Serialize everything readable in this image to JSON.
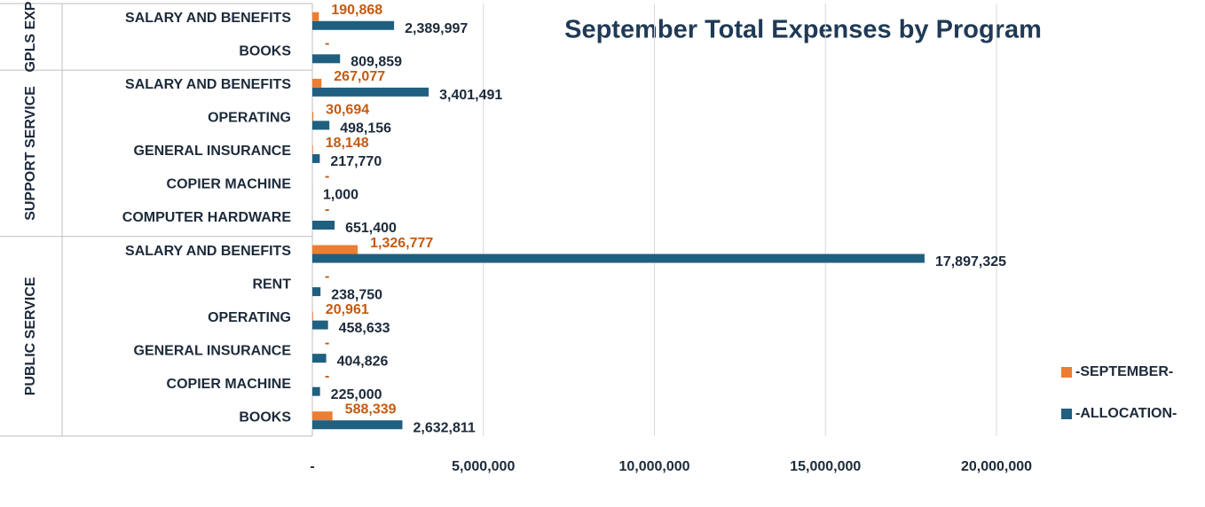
{
  "chart_data": {
    "type": "bar",
    "orientation": "horizontal",
    "title": "September Total Expenses by Program",
    "groups": [
      {
        "name": "GPLS EXP",
        "categories": [
          "SALARY AND BENEFITS",
          "BOOKS"
        ]
      },
      {
        "name": "SUPPORT SERVICE",
        "categories": [
          "SALARY AND BENEFITS",
          "OPERATING",
          "GENERAL INSURANCE",
          "COPIER MACHINE",
          "COMPUTER HARDWARE"
        ]
      },
      {
        "name": "PUBLIC SERVICE",
        "categories": [
          "SALARY AND BENEFITS",
          "RENT",
          "OPERATING",
          "GENERAL INSURANCE",
          "COPIER MACHINE",
          "BOOKS"
        ]
      }
    ],
    "series": [
      {
        "name": "-SEPTEMBER-",
        "color": "#ed7d31",
        "label_color": "#c55a11",
        "values": [
          190868,
          0,
          267077,
          30694,
          18148,
          0,
          0,
          1326777,
          0,
          20961,
          0,
          0,
          588339
        ],
        "value_labels": [
          "190,868",
          "-",
          "267,077",
          "30,694",
          "18,148",
          "-",
          "-",
          "1,326,777",
          "-",
          "20,961",
          "-",
          "-",
          "588,339"
        ]
      },
      {
        "name": "-ALLOCATION-",
        "color": "#1f5f7f",
        "label_color": "#1c2a3a",
        "values": [
          2389997,
          809859,
          3401491,
          498156,
          217770,
          1000,
          651400,
          17897325,
          238750,
          458633,
          404826,
          225000,
          2632811
        ],
        "value_labels": [
          "2,389,997",
          "809,859",
          "3,401,491",
          "498,156",
          "217,770",
          "1,000",
          "651,400",
          "17,897,325",
          "238,750",
          "458,633",
          "404,826",
          "225,000",
          "2,632,811"
        ]
      }
    ],
    "xlim": [
      0,
      20000000
    ],
    "xticks": [
      {
        "value": 0,
        "label": "-"
      },
      {
        "value": 5000000,
        "label": "5,000,000"
      },
      {
        "value": 10000000,
        "label": "10,000,000"
      },
      {
        "value": 15000000,
        "label": "15,000,000"
      },
      {
        "value": 20000000,
        "label": "20,000,000"
      }
    ],
    "grid": true,
    "legend": "right"
  }
}
